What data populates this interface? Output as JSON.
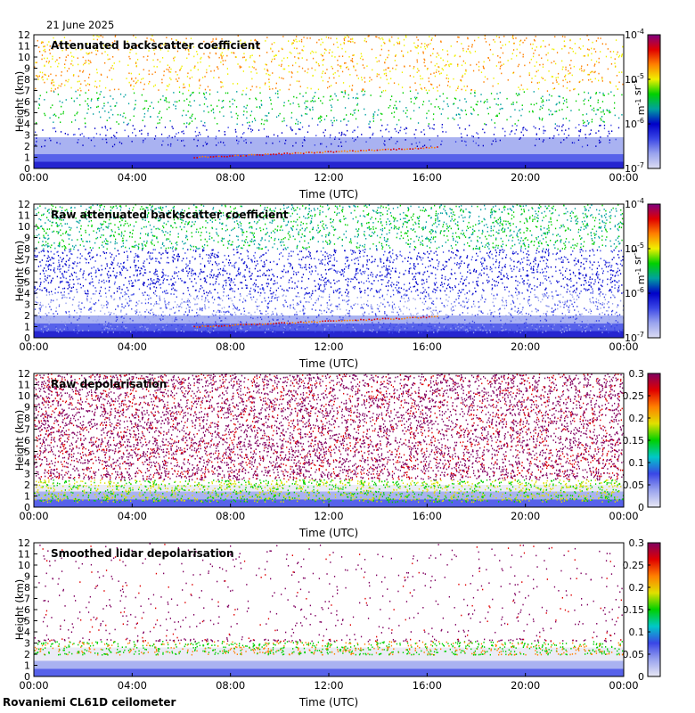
{
  "header": {
    "date": "21 June 2025"
  },
  "footer": {
    "station": "Rovaniemi CL61D ceilometer"
  },
  "colors": {
    "background": "#3b48d8",
    "backscatter_scale": [
      "#dcdcf2",
      "#9aa4ee",
      "#3a46e6",
      "#0000c8",
      "#00a0a0",
      "#00d000",
      "#f0f000",
      "#ff8000",
      "#e00000",
      "#800080"
    ],
    "depol_scale": [
      "#e8e8f4",
      "#9aa4ee",
      "#3a46e6",
      "#00c8c8",
      "#00d000",
      "#e0e000",
      "#ff8000",
      "#e00000",
      "#800060"
    ]
  },
  "chart_data": [
    {
      "type": "heatmap",
      "title": "Attenuated backscatter coefficient",
      "xlabel": "Time (UTC)",
      "ylabel": "Height (km)",
      "x_ticks": [
        "00:00",
        "04:00",
        "08:00",
        "12:00",
        "16:00",
        "20:00",
        "00:00"
      ],
      "y_ticks": [
        "0",
        "1",
        "2",
        "3",
        "4",
        "5",
        "6",
        "7",
        "8",
        "9",
        "10",
        "11",
        "12"
      ],
      "ylim": [
        0,
        12
      ],
      "colorbar": {
        "scale": "log",
        "ticks": [
          "10-7",
          "10-6",
          "10-5",
          "10-4"
        ],
        "label": "m-1 sr-1"
      },
      "noise": "sparse",
      "layer_top_km": 2.8
    },
    {
      "type": "heatmap",
      "title": "Raw attenuated backscatter coefficient",
      "xlabel": "Time (UTC)",
      "ylabel": "Height (km)",
      "x_ticks": [
        "00:00",
        "04:00",
        "08:00",
        "12:00",
        "16:00",
        "20:00",
        "00:00"
      ],
      "y_ticks": [
        "0",
        "1",
        "2",
        "3",
        "4",
        "5",
        "6",
        "7",
        "8",
        "9",
        "10",
        "11",
        "12"
      ],
      "ylim": [
        0,
        12
      ],
      "colorbar": {
        "scale": "log",
        "ticks": [
          "10-7",
          "10-6",
          "10-5",
          "10-4"
        ],
        "label": "m-1 sr-1"
      },
      "noise": "dense",
      "layer_top_km": 2.0
    },
    {
      "type": "heatmap",
      "title": "Raw depolarisation",
      "xlabel": "Time (UTC)",
      "ylabel": "Height (km)",
      "x_ticks": [
        "00:00",
        "04:00",
        "08:00",
        "12:00",
        "16:00",
        "20:00",
        "00:00"
      ],
      "y_ticks": [
        "0",
        "1",
        "2",
        "3",
        "4",
        "5",
        "6",
        "7",
        "8",
        "9",
        "10",
        "11",
        "12"
      ],
      "ylim": [
        0,
        12
      ],
      "colorbar": {
        "scale": "linear",
        "ticks": [
          "0",
          "0.05",
          "0.1",
          "0.15",
          "0.2",
          "0.25",
          "0.3"
        ],
        "range": [
          0,
          0.3
        ]
      },
      "noise": "depol-dense",
      "layer_top_km": 2.0
    },
    {
      "type": "heatmap",
      "title": "Smoothed lidar depolarisation",
      "xlabel": "Time (UTC)",
      "ylabel": "Height (km)",
      "x_ticks": [
        "00:00",
        "04:00",
        "08:00",
        "12:00",
        "16:00",
        "20:00",
        "00:00"
      ],
      "y_ticks": [
        "0",
        "1",
        "2",
        "3",
        "4",
        "5",
        "6",
        "7",
        "8",
        "9",
        "10",
        "11",
        "12"
      ],
      "ylim": [
        0,
        12
      ],
      "colorbar": {
        "scale": "linear",
        "ticks": [
          "0",
          "0.05",
          "0.1",
          "0.15",
          "0.2",
          "0.25",
          "0.3"
        ],
        "range": [
          0,
          0.3
        ]
      },
      "noise": "depol-sparse",
      "layer_top_km": 2.6
    }
  ]
}
